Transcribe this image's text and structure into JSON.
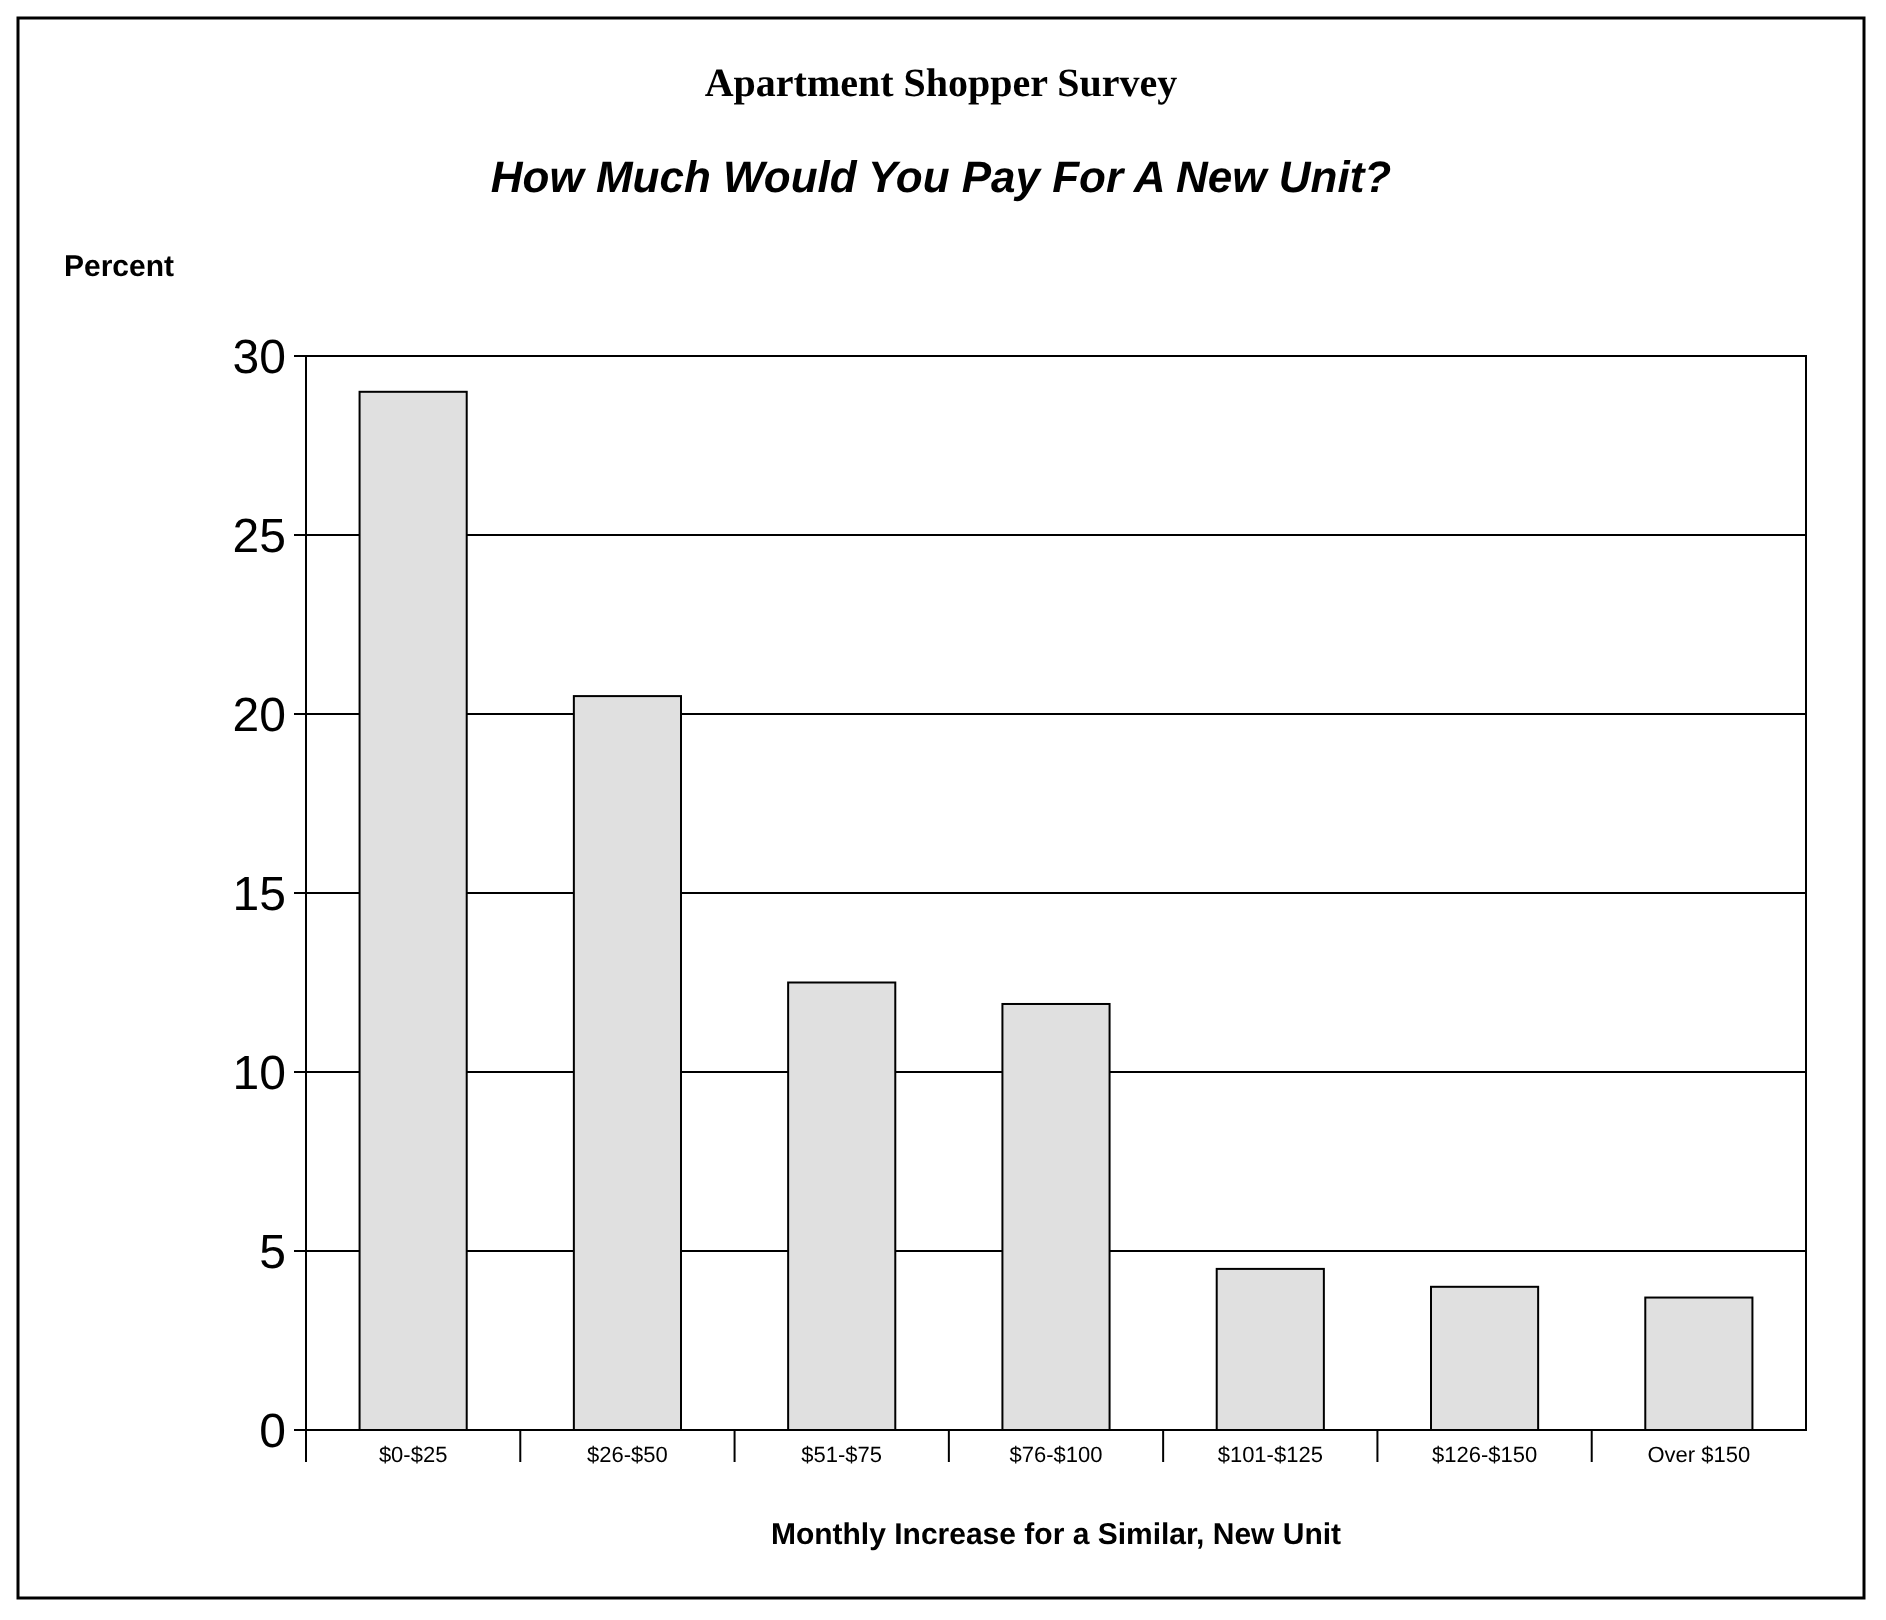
{
  "chart_data": {
    "type": "bar",
    "title": "Apartment Shopper Survey",
    "subtitle": "How Much Would You Pay For A New Unit?",
    "ylabel": "Percent",
    "xlabel": "Monthly Increase for a Similar, New Unit",
    "categories": [
      "$0-$25",
      "$26-$50",
      "$51-$75",
      "$76-$100",
      "$101-$125",
      "$126-$150",
      "Over $150"
    ],
    "values": [
      29.0,
      20.5,
      12.5,
      11.9,
      4.5,
      4.0,
      3.7
    ],
    "color": "#e0e0e0",
    "ylim": [
      0,
      30
    ],
    "yticks": [
      0,
      5,
      10,
      15,
      20,
      25,
      30
    ],
    "grid": "y"
  }
}
